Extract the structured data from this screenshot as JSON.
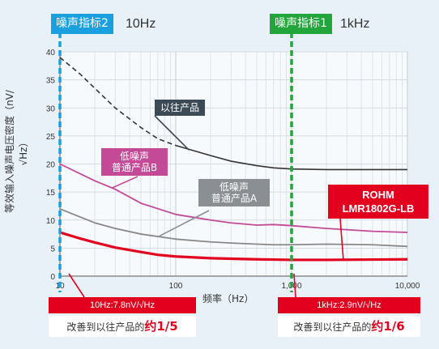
{
  "markers": {
    "m2": {
      "label": "噪声指标2",
      "freq_text": "10Hz",
      "color": "#1aa0de"
    },
    "m1": {
      "label": "噪声指标1",
      "freq_text": "1kHz",
      "color": "#22a63b"
    }
  },
  "labels": {
    "conventional": "以往产品",
    "low_noise_b_1": "低噪声",
    "low_noise_b_2": "普通产品B",
    "low_noise_a_1": "低噪声",
    "low_noise_a_2": "普通产品A",
    "rohm_1": "ROHM",
    "rohm_2": "LMR1802G-LB"
  },
  "results": {
    "r10": {
      "value_text": "10Hz:7.8nV/√Hz",
      "improve_prefix": "改善到以往产品的",
      "improve_em": "约1/5"
    },
    "r1k": {
      "value_text": "1kHz:2.9nV/√Hz",
      "improve_prefix": "改善到以往产品的",
      "improve_em": "约1/6"
    }
  },
  "colors": {
    "conventional": "#333333",
    "low_noise_b": "#c44a98",
    "low_noise_a": "#888888",
    "rohm": "#e3001e"
  },
  "chart_data": {
    "type": "line",
    "xscale": "log",
    "xlabel": "频率（Hz）",
    "ylabel": "等效输入噪声电压密度（nV/√Hz）",
    "xlim": [
      10,
      10000
    ],
    "ylim": [
      0,
      40
    ],
    "x_ticks": [
      "10",
      "100",
      "1,000",
      "10,000"
    ],
    "y_ticks": [
      0,
      5,
      10,
      15,
      20,
      25,
      30,
      35,
      40
    ],
    "grid": true,
    "series": [
      {
        "name": "以往产品",
        "x": [
          10,
          15,
          20,
          30,
          50,
          70,
          100,
          200,
          300,
          500,
          700,
          1000,
          2000,
          5000,
          10000
        ],
        "y": [
          39,
          36,
          33.5,
          30,
          26.5,
          24.5,
          23.3,
          21.5,
          20.5,
          19.7,
          19.3,
          19.1,
          19,
          19,
          19
        ]
      },
      {
        "name": "低噪声 普通产品B",
        "x": [
          10,
          20,
          30,
          50,
          100,
          200,
          300,
          500,
          700,
          1000,
          2000,
          5000,
          10000
        ],
        "y": [
          20,
          17,
          15.5,
          13,
          11,
          10,
          9.5,
          9.1,
          9.2,
          9,
          8.5,
          8,
          7.8
        ]
      },
      {
        "name": "低噪声 普通产品A",
        "x": [
          10,
          20,
          30,
          50,
          100,
          200,
          300,
          500,
          700,
          1000,
          2000,
          5000,
          10000
        ],
        "y": [
          12,
          9.5,
          8.5,
          7.5,
          6.6,
          6.1,
          5.9,
          5.7,
          5.6,
          5.6,
          5.7,
          5.6,
          5.3
        ]
      },
      {
        "name": "ROHM LMR1802G-LB",
        "x": [
          10,
          15,
          20,
          30,
          50,
          70,
          100,
          200,
          300,
          500,
          700,
          1000,
          2000,
          5000,
          10000
        ],
        "y": [
          7.8,
          6.7,
          6,
          5.1,
          4.3,
          3.8,
          3.5,
          3.2,
          3.1,
          3.0,
          2.95,
          2.9,
          2.9,
          2.95,
          3
        ]
      }
    ]
  }
}
